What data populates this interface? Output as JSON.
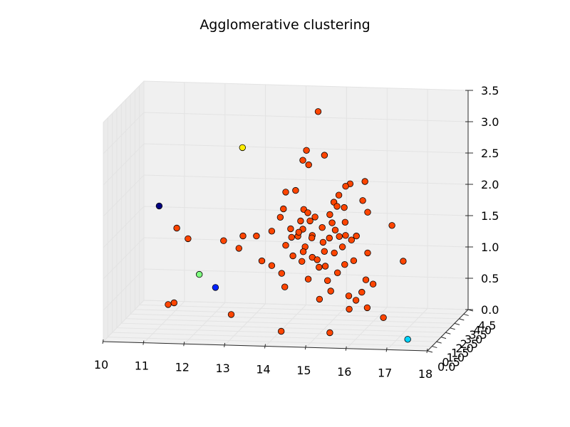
{
  "chart_data": {
    "type": "scatter",
    "projection": "3d",
    "title": "Agglomerative clustering",
    "xlabel": "",
    "ylabel": "",
    "zlabel": "",
    "grid": true,
    "legend": "none",
    "xlim": [
      10,
      18
    ],
    "ylim": [
      0,
      4.5
    ],
    "zlim": [
      0,
      3.5
    ],
    "x_ticks": [
      "10",
      "11",
      "12",
      "13",
      "14",
      "15",
      "16",
      "17",
      "18"
    ],
    "y_ticks": [
      "0.0",
      "0.5",
      "1.0",
      "1.5",
      "2.0",
      "2.5",
      "3.0",
      "3.5",
      "4.0",
      "4.5"
    ],
    "z_ticks": [
      "0.0",
      "0.5",
      "1.0",
      "1.5",
      "2.0",
      "2.5",
      "3.0",
      "3.5"
    ],
    "colors": {
      "pane": "#f0f0f0",
      "pane_side": "#ebebeb",
      "grid": "#e3e3e3",
      "edge": "#2b2b2b"
    },
    "series": [
      {
        "color": "#ff4500",
        "points": [
          [
            14.9,
            1.8,
            3.5
          ],
          [
            14.5,
            2.3,
            2.8
          ],
          [
            14.5,
            1.9,
            2.7
          ],
          [
            14.9,
            2.5,
            2.7
          ],
          [
            14.6,
            2.1,
            2.6
          ],
          [
            14.1,
            1.8,
            2.2
          ],
          [
            15.6,
            2.2,
            2.3
          ],
          [
            15.9,
            2.5,
            2.3
          ],
          [
            14.3,
            2.0,
            2.2
          ],
          [
            15.4,
            2.6,
            2.2
          ],
          [
            15.3,
            2.3,
            2.1
          ],
          [
            16.0,
            1.8,
            2.1
          ],
          [
            14.0,
            2.0,
            1.9
          ],
          [
            15.2,
            2.2,
            2.0
          ],
          [
            15.5,
            2.0,
            1.95
          ],
          [
            16.1,
            1.9,
            1.9
          ],
          [
            14.5,
            2.0,
            1.9
          ],
          [
            15.3,
            2.1,
            1.95
          ],
          [
            16.7,
            1.9,
            1.7
          ],
          [
            14.6,
            2.0,
            1.85
          ],
          [
            14.8,
            1.9,
            1.8
          ],
          [
            13.9,
            2.1,
            1.75
          ],
          [
            15.1,
            2.2,
            1.8
          ],
          [
            13.8,
            1.6,
            1.6
          ],
          [
            14.4,
            2.1,
            1.7
          ],
          [
            14.7,
            1.8,
            1.75
          ],
          [
            15.2,
            2.0,
            1.7
          ],
          [
            15.5,
            2.1,
            1.7
          ],
          [
            11.3,
            2.3,
            1.5
          ],
          [
            11.6,
            2.2,
            1.35
          ],
          [
            12.5,
            2.1,
            1.35
          ],
          [
            13.0,
            2.0,
            1.45
          ],
          [
            13.4,
            1.7,
            1.5
          ],
          [
            12.9,
            2.0,
            1.25
          ],
          [
            13.6,
            1.4,
            1.15
          ],
          [
            14.5,
            1.9,
            1.6
          ],
          [
            14.8,
            1.6,
            1.55
          ],
          [
            15.3,
            1.9,
            1.6
          ],
          [
            15.8,
            2.0,
            1.5
          ],
          [
            14.2,
            2.0,
            1.45
          ],
          [
            14.4,
            1.8,
            1.5
          ],
          [
            15.2,
            1.7,
            1.5
          ],
          [
            15.7,
            1.9,
            1.45
          ],
          [
            14.1,
            1.8,
            1.35
          ],
          [
            14.6,
            1.7,
            1.35
          ],
          [
            15.0,
            1.9,
            1.4
          ],
          [
            15.5,
            1.8,
            1.35
          ],
          [
            16.1,
            1.9,
            1.25
          ],
          [
            14.3,
            1.7,
            1.2
          ],
          [
            14.8,
            1.6,
            1.2
          ],
          [
            15.3,
            1.8,
            1.25
          ],
          [
            15.8,
            1.7,
            1.15
          ],
          [
            14.5,
            1.8,
            1.1
          ],
          [
            15.1,
            1.7,
            1.05
          ],
          [
            15.6,
            1.6,
            1.1
          ],
          [
            14.9,
            1.9,
            1.0
          ],
          [
            13.8,
            1.6,
            1.05
          ],
          [
            14.0,
            1.8,
            0.9
          ],
          [
            15.4,
            1.7,
            0.95
          ],
          [
            17.0,
            1.8,
            1.15
          ],
          [
            14.7,
            1.6,
            0.85
          ],
          [
            15.2,
            1.5,
            0.85
          ],
          [
            16.1,
            1.7,
            0.85
          ],
          [
            16.3,
            1.6,
            0.8
          ],
          [
            16.0,
            1.7,
            0.65
          ],
          [
            14.1,
            1.7,
            0.7
          ],
          [
            15.3,
            1.4,
            0.7
          ],
          [
            15.7,
            1.6,
            0.6
          ],
          [
            15.9,
            1.5,
            0.55
          ],
          [
            15.0,
            1.5,
            0.55
          ],
          [
            15.8,
            1.2,
            0.45
          ],
          [
            16.2,
            1.4,
            0.45
          ],
          [
            16.6,
            1.4,
            0.3
          ],
          [
            11.2,
            1.8,
            0.35
          ],
          [
            11.3,
            2.0,
            0.35
          ],
          [
            12.8,
            1.6,
            0.25
          ],
          [
            14.1,
            1.3,
            0.05
          ],
          [
            15.3,
            1.3,
            0.05
          ],
          [
            14.4,
            1.9,
            1.55
          ],
          [
            14.7,
            2.0,
            1.45
          ],
          [
            15.0,
            1.8,
            1.65
          ],
          [
            15.4,
            1.9,
            1.5
          ],
          [
            14.6,
            1.5,
            1.3
          ],
          [
            15.1,
            1.6,
            1.3
          ],
          [
            14.2,
            1.9,
            1.6
          ],
          [
            15.6,
            1.7,
            1.55
          ],
          [
            14.9,
            1.7,
            1.15
          ]
        ]
      },
      {
        "color": "#ffee00",
        "points": [
          [
            12.9,
            2.4,
            2.8
          ]
        ]
      },
      {
        "color": "#000080",
        "points": [
          [
            10.8,
            2.6,
            1.8
          ]
        ]
      },
      {
        "color": "#7fff7f",
        "points": [
          [
            11.9,
            2.1,
            0.8
          ]
        ]
      },
      {
        "color": "#0022ff",
        "points": [
          [
            12.3,
            2.1,
            0.6
          ]
        ]
      },
      {
        "color": "#00d4ff",
        "points": [
          [
            17.4,
            0.5,
            0.1
          ]
        ]
      }
    ]
  }
}
